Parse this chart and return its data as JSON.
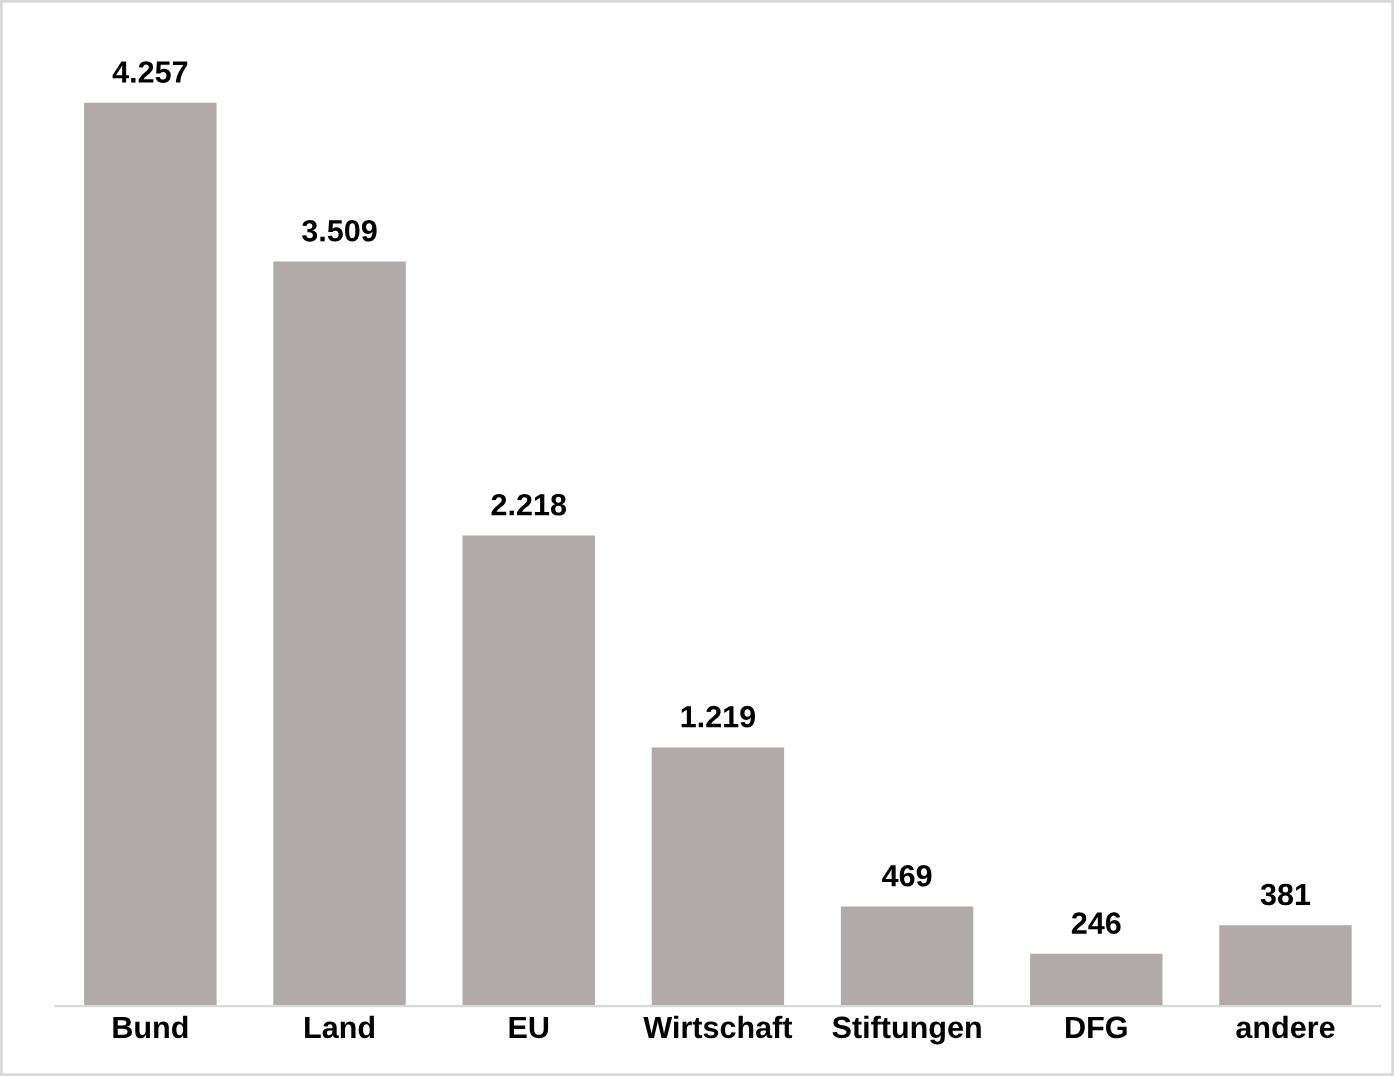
{
  "chart_data": {
    "type": "bar",
    "categories": [
      "Bund",
      "Land",
      "EU",
      "Wirtschaft",
      "Stiftungen",
      "DFG",
      "andere"
    ],
    "values": [
      4257,
      3509,
      2218,
      1219,
      469,
      246,
      381
    ],
    "value_labels": [
      "4.257",
      "3.509",
      "2.218",
      "1.219",
      "469",
      "246",
      "381"
    ],
    "color": "#b0abaa",
    "grid": false,
    "legend": false
  }
}
